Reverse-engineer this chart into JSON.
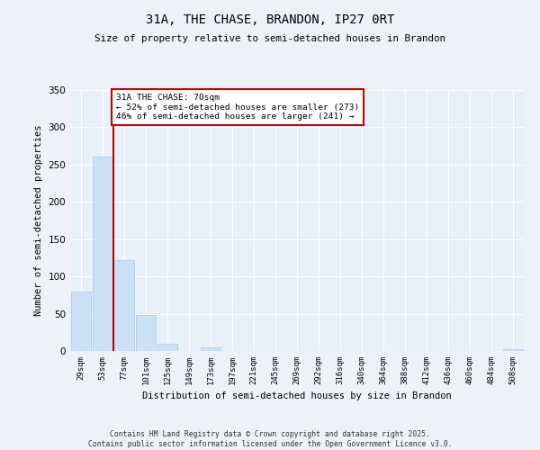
{
  "title": "31A, THE CHASE, BRANDON, IP27 0RT",
  "subtitle": "Size of property relative to semi-detached houses in Brandon",
  "xlabel": "Distribution of semi-detached houses by size in Brandon",
  "ylabel": "Number of semi-detached properties",
  "categories": [
    "29sqm",
    "53sqm",
    "77sqm",
    "101sqm",
    "125sqm",
    "149sqm",
    "173sqm",
    "197sqm",
    "221sqm",
    "245sqm",
    "269sqm",
    "292sqm",
    "316sqm",
    "340sqm",
    "364sqm",
    "388sqm",
    "412sqm",
    "436sqm",
    "460sqm",
    "484sqm",
    "508sqm"
  ],
  "values": [
    80,
    261,
    122,
    48,
    10,
    0,
    5,
    0,
    0,
    0,
    0,
    0,
    0,
    0,
    0,
    0,
    0,
    0,
    0,
    0,
    2
  ],
  "bar_color": "#cce0f5",
  "bar_edge_color": "#a8c8e8",
  "vline_x": 1.5,
  "vline_color": "#cc0000",
  "annotation_title": "31A THE CHASE: 70sqm",
  "annotation_line2": "← 52% of semi-detached houses are smaller (273)",
  "annotation_line3": "46% of semi-detached houses are larger (241) →",
  "annotation_box_color": "#cc0000",
  "ylim": [
    0,
    350
  ],
  "yticks": [
    0,
    50,
    100,
    150,
    200,
    250,
    300,
    350
  ],
  "background_color": "#e8f0fa",
  "grid_color": "#ffffff",
  "footer_line1": "Contains HM Land Registry data © Crown copyright and database right 2025.",
  "footer_line2": "Contains public sector information licensed under the Open Government Licence v3.0."
}
